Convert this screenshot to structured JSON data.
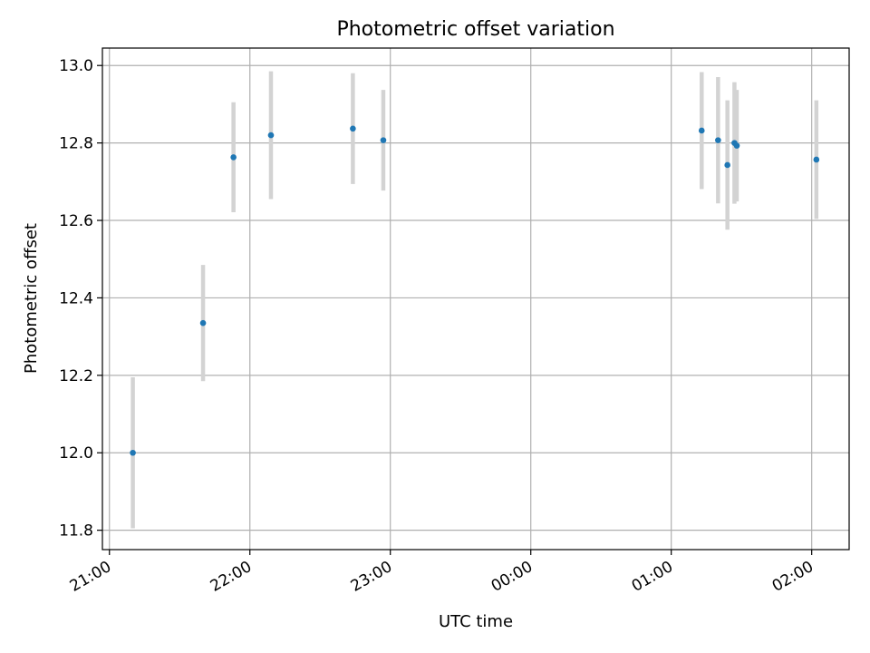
{
  "chart_data": {
    "type": "scatter",
    "title": "Photometric offset variation",
    "xlabel": "UTC time",
    "ylabel": "Photometric offset",
    "x_ticks": [
      "21:00",
      "22:00",
      "23:00",
      "00:00",
      "01:00",
      "02:00"
    ],
    "y_ticks": [
      "11.8",
      "12.0",
      "12.2",
      "12.4",
      "12.6",
      "12.8",
      "13.0"
    ],
    "xlim": [
      "20:57",
      "02:16"
    ],
    "ylim": [
      11.75,
      13.045
    ],
    "grid": true,
    "colors": {
      "point": "#1f77b4",
      "errorbar": "#d3d3d3",
      "grid": "#b0b0b0",
      "axes": "#000000"
    },
    "series": [
      {
        "points": [
          {
            "x": "21:10",
            "y": 12.0,
            "err": 0.195
          },
          {
            "x": "21:40",
            "y": 12.335,
            "err": 0.15
          },
          {
            "x": "21:53",
            "y": 12.763,
            "err": 0.142
          },
          {
            "x": "22:09",
            "y": 12.82,
            "err": 0.165
          },
          {
            "x": "22:44",
            "y": 12.837,
            "err": 0.143
          },
          {
            "x": "22:57",
            "y": 12.807,
            "err": 0.13
          },
          {
            "x": "01:13",
            "y": 12.832,
            "err": 0.151
          },
          {
            "x": "01:20",
            "y": 12.807,
            "err": 0.163
          },
          {
            "x": "01:24",
            "y": 12.743,
            "err": 0.167
          },
          {
            "x": "01:27",
            "y": 12.8,
            "err": 0.157
          },
          {
            "x": "01:28",
            "y": 12.793,
            "err": 0.144
          },
          {
            "x": "02:02",
            "y": 12.757,
            "err": 0.153
          }
        ]
      }
    ]
  }
}
